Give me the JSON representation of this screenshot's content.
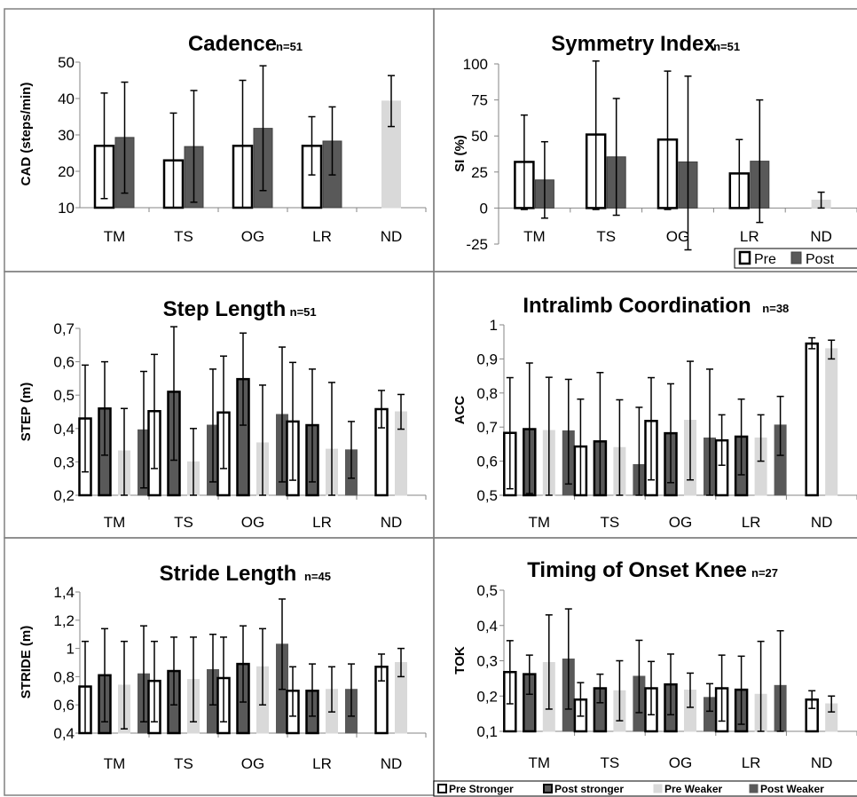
{
  "colors": {
    "pre": "#ffffff",
    "post": "#595959",
    "pre_weaker": "#d9d9d9",
    "post_weaker": "#595959",
    "nd": "#d9d9d9",
    "border": "#808080",
    "axis": "#868686"
  },
  "legend_top": {
    "pre": "Pre",
    "post": "Post"
  },
  "legend_bottom": {
    "pre_stronger": "Pre Stronger",
    "post_stronger": "Post stronger",
    "pre_weaker": "Pre Weaker",
    "post_weaker": "Post Weaker"
  },
  "chart_data": [
    {
      "type": "bar",
      "title": "Cadence",
      "n_label": "n=51",
      "ylabel": "CAD (steps/min)",
      "ylim": [
        10,
        50
      ],
      "yticks": [
        "10",
        "20",
        "30",
        "40",
        "50"
      ],
      "categories": [
        "TM",
        "TS",
        "OG",
        "LR",
        "ND"
      ],
      "series": [
        {
          "name": "Pre",
          "values": [
            27,
            23,
            27,
            27,
            null
          ],
          "err_low": [
            12.5,
            10,
            10,
            19,
            null
          ],
          "err_high": [
            41.5,
            36,
            45,
            35,
            null
          ]
        },
        {
          "name": "Post",
          "values": [
            29.3,
            26.8,
            31.8,
            28.3,
            null
          ],
          "err_low": [
            14,
            11.5,
            14.7,
            19,
            null
          ],
          "err_high": [
            44.5,
            42.2,
            49,
            37.7,
            null
          ]
        },
        {
          "name": "",
          "values": [
            null,
            null,
            null,
            null,
            39.3
          ],
          "err_low": [
            null,
            null,
            null,
            null,
            32.3
          ],
          "err_high": [
            null,
            null,
            null,
            null,
            46.3
          ]
        }
      ]
    },
    {
      "type": "bar",
      "title": "Symmetry Index",
      "n_label": "n=51",
      "ylabel": "SI (%)",
      "ylim": [
        -25,
        100
      ],
      "yticks": [
        "-25",
        "0",
        "25",
        "50",
        "75",
        "100"
      ],
      "categories": [
        "TM",
        "TS",
        "OG",
        "LR",
        "ND"
      ],
      "series": [
        {
          "name": "Pre",
          "values": [
            32,
            51,
            47.5,
            24,
            null
          ],
          "err_low": [
            -1,
            -1,
            -1,
            0,
            null
          ],
          "err_high": [
            64.5,
            102,
            95,
            47.5,
            null
          ]
        },
        {
          "name": "Post",
          "values": [
            19.5,
            35.5,
            32,
            32.5,
            null
          ],
          "err_low": [
            -7,
            -5,
            -29,
            -10,
            null
          ],
          "err_high": [
            46,
            76,
            91.5,
            75,
            null
          ]
        },
        {
          "name": "",
          "values": [
            null,
            null,
            null,
            null,
            5.5
          ],
          "err_low": [
            null,
            null,
            null,
            null,
            0
          ],
          "err_high": [
            null,
            null,
            null,
            null,
            11
          ]
        }
      ]
    },
    {
      "type": "bar",
      "title": "Step Length",
      "n_label": "n=51",
      "ylabel": "STEP (m)",
      "ylim": [
        0.2,
        0.7
      ],
      "yticks": [
        "0,2",
        "0,3",
        "0,4",
        "0,5",
        "0,6",
        "0,7"
      ],
      "categories": [
        "TM",
        "TS",
        "OG",
        "LR",
        "ND"
      ],
      "series": [
        {
          "name": "Pre Stronger",
          "values": [
            0.43,
            0.452,
            0.448,
            0.421,
            0.458
          ],
          "err_low": [
            0.27,
            0.28,
            0.28,
            0.245,
            0.402
          ],
          "err_high": [
            0.59,
            0.622,
            0.617,
            0.598,
            0.514
          ]
        },
        {
          "name": "Post stronger",
          "values": [
            0.46,
            0.51,
            0.548,
            0.41,
            null
          ],
          "err_low": [
            0.32,
            0.305,
            0.41,
            0.24,
            null
          ],
          "err_high": [
            0.6,
            0.705,
            0.686,
            0.578,
            null
          ]
        },
        {
          "name": "Pre Weaker",
          "values": [
            0.333,
            0.3,
            0.357,
            0.338,
            0.45
          ],
          "err_low": [
            0.2,
            0.2,
            0.2,
            0.2,
            0.398
          ],
          "err_high": [
            0.46,
            0.4,
            0.53,
            0.538,
            0.502
          ]
        },
        {
          "name": "Post Weaker",
          "values": [
            0.396,
            0.41,
            0.442,
            0.336,
            null
          ],
          "err_low": [
            0.222,
            0.24,
            0.24,
            0.251,
            null
          ],
          "err_high": [
            0.571,
            0.578,
            0.644,
            0.421,
            null
          ]
        }
      ]
    },
    {
      "type": "bar",
      "title": "Intralimb Coordination",
      "n_label": "n=38",
      "ylabel": "ACC",
      "ylim": [
        0.5,
        1.0
      ],
      "yticks": [
        "0,5",
        "0,6",
        "0,7",
        "0,8",
        "0,9",
        "1"
      ],
      "categories": [
        "TM",
        "TS",
        "OG",
        "LR",
        "ND"
      ],
      "series": [
        {
          "name": "Pre Stronger",
          "values": [
            0.683,
            0.643,
            0.718,
            0.661,
            0.945
          ],
          "err_low": [
            0.519,
            0.5,
            0.545,
            0.588,
            0.93
          ],
          "err_high": [
            0.845,
            0.782,
            0.845,
            0.736,
            0.962
          ]
        },
        {
          "name": "Post stronger",
          "values": [
            0.694,
            0.658,
            0.682,
            0.672,
            null
          ],
          "err_low": [
            0.505,
            0.5,
            0.537,
            0.56,
            null
          ],
          "err_high": [
            0.888,
            0.86,
            0.827,
            0.782,
            null
          ]
        },
        {
          "name": "Pre Weaker",
          "values": [
            0.69,
            0.64,
            0.72,
            0.668,
            0.93
          ],
          "err_low": [
            0.5,
            0.5,
            0.545,
            0.6,
            0.9
          ],
          "err_high": [
            0.846,
            0.78,
            0.893,
            0.736,
            0.955
          ]
        },
        {
          "name": "Post Weaker",
          "values": [
            0.689,
            0.59,
            0.668,
            0.706,
            null
          ],
          "err_low": [
            0.533,
            0.5,
            0.5,
            0.617,
            null
          ],
          "err_high": [
            0.84,
            0.758,
            0.87,
            0.79,
            null
          ]
        }
      ]
    },
    {
      "type": "bar",
      "title": "Stride Length",
      "n_label": "n=45",
      "ylabel": "STRIDE (m)",
      "ylim": [
        0.4,
        1.4
      ],
      "yticks": [
        "0,4",
        "0,6",
        "0,8",
        "1",
        "1,2",
        "1,4"
      ],
      "categories": [
        "TM",
        "TS",
        "OG",
        "LR",
        "ND"
      ],
      "series": [
        {
          "name": "Pre Stronger",
          "values": [
            0.73,
            0.77,
            0.79,
            0.7,
            0.87
          ],
          "err_low": [
            0.4,
            0.48,
            0.48,
            0.52,
            0.77
          ],
          "err_high": [
            1.05,
            1.05,
            1.08,
            0.87,
            0.96
          ]
        },
        {
          "name": "Post stronger",
          "values": [
            0.81,
            0.84,
            0.89,
            0.7,
            null
          ],
          "err_low": [
            0.48,
            0.6,
            0.62,
            0.52,
            null
          ],
          "err_high": [
            1.14,
            1.08,
            1.16,
            0.89,
            null
          ]
        },
        {
          "name": "Pre Weaker",
          "values": [
            0.74,
            0.78,
            0.87,
            0.71,
            0.9
          ],
          "err_low": [
            0.43,
            0.48,
            0.6,
            0.55,
            0.8
          ],
          "err_high": [
            1.05,
            1.08,
            1.14,
            0.87,
            1.0
          ]
        },
        {
          "name": "Post Weaker",
          "values": [
            0.82,
            0.85,
            1.03,
            0.71,
            null
          ],
          "err_low": [
            0.48,
            0.6,
            0.71,
            0.52,
            null
          ],
          "err_high": [
            1.16,
            1.1,
            1.35,
            0.89,
            null
          ]
        }
      ]
    },
    {
      "type": "bar",
      "title": "Timing of Onset Knee",
      "n_label": "n=27",
      "ylabel": "TOK",
      "ylim": [
        0.1,
        0.5
      ],
      "yticks": [
        "0,1",
        "0,2",
        "0,3",
        "0,4",
        "0,5"
      ],
      "categories": [
        "TM",
        "TS",
        "OG",
        "LR",
        "ND"
      ],
      "series": [
        {
          "name": "Pre Stronger",
          "values": [
            0.268,
            0.19,
            0.222,
            0.222,
            0.19
          ],
          "err_low": [
            0.178,
            0.143,
            0.147,
            0.129,
            0.165
          ],
          "err_high": [
            0.357,
            0.238,
            0.298,
            0.316,
            0.215
          ]
        },
        {
          "name": "Post stronger",
          "values": [
            0.262,
            0.222,
            0.233,
            0.218,
            null
          ],
          "err_low": [
            0.205,
            0.181,
            0.147,
            0.12,
            null
          ],
          "err_high": [
            0.316,
            0.262,
            0.319,
            0.313,
            null
          ]
        },
        {
          "name": "Pre Weaker",
          "values": [
            0.295,
            0.215,
            0.217,
            0.205,
            0.178
          ],
          "err_low": [
            0.163,
            0.13,
            0.168,
            0.1,
            0.155
          ],
          "err_high": [
            0.43,
            0.3,
            0.265,
            0.355,
            0.2
          ]
        },
        {
          "name": "Post Weaker",
          "values": [
            0.305,
            0.256,
            0.196,
            0.23,
            null
          ],
          "err_low": [
            0.163,
            0.153,
            0.157,
            0.1,
            null
          ],
          "err_high": [
            0.447,
            0.358,
            0.235,
            0.385,
            null
          ]
        }
      ]
    }
  ]
}
